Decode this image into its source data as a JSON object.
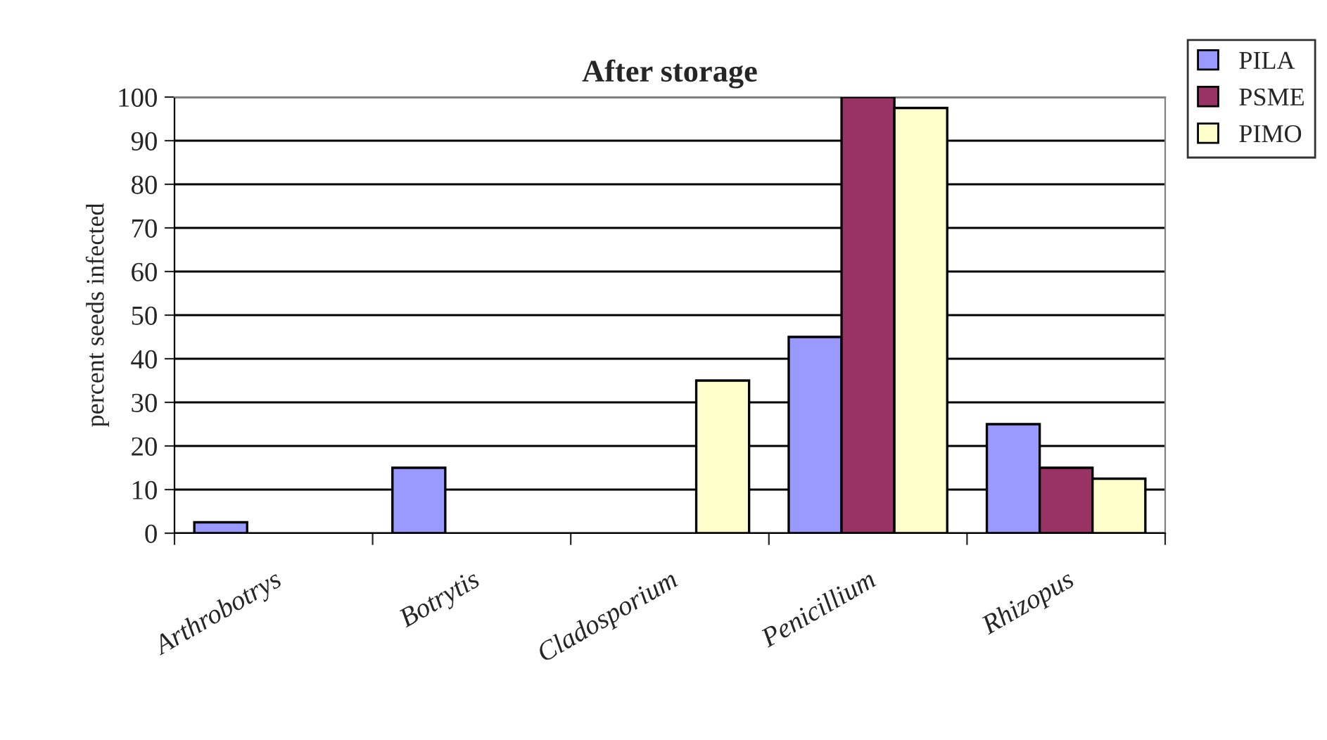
{
  "chart_data": {
    "type": "bar",
    "title": "After storage",
    "ylabel": "percent seeds infected",
    "categories": [
      "Arthrobotrys",
      "Botrytis",
      "Cladosporium",
      "Penicillium",
      "Rhizopus"
    ],
    "series": [
      {
        "name": "PILA",
        "color": "#9999ff",
        "values": [
          2.5,
          15,
          0,
          45,
          25
        ]
      },
      {
        "name": "PSME",
        "color": "#993366",
        "values": [
          0,
          0,
          0,
          100,
          15
        ]
      },
      {
        "name": "PIMO",
        "color": "#ffffcc",
        "values": [
          0,
          0,
          35,
          97.5,
          12.5
        ]
      }
    ],
    "ylim": [
      0,
      100
    ],
    "yticks": [
      0,
      10,
      20,
      30,
      40,
      50,
      60,
      70,
      80,
      90,
      100
    ],
    "grid": "y",
    "legend": "top right"
  }
}
